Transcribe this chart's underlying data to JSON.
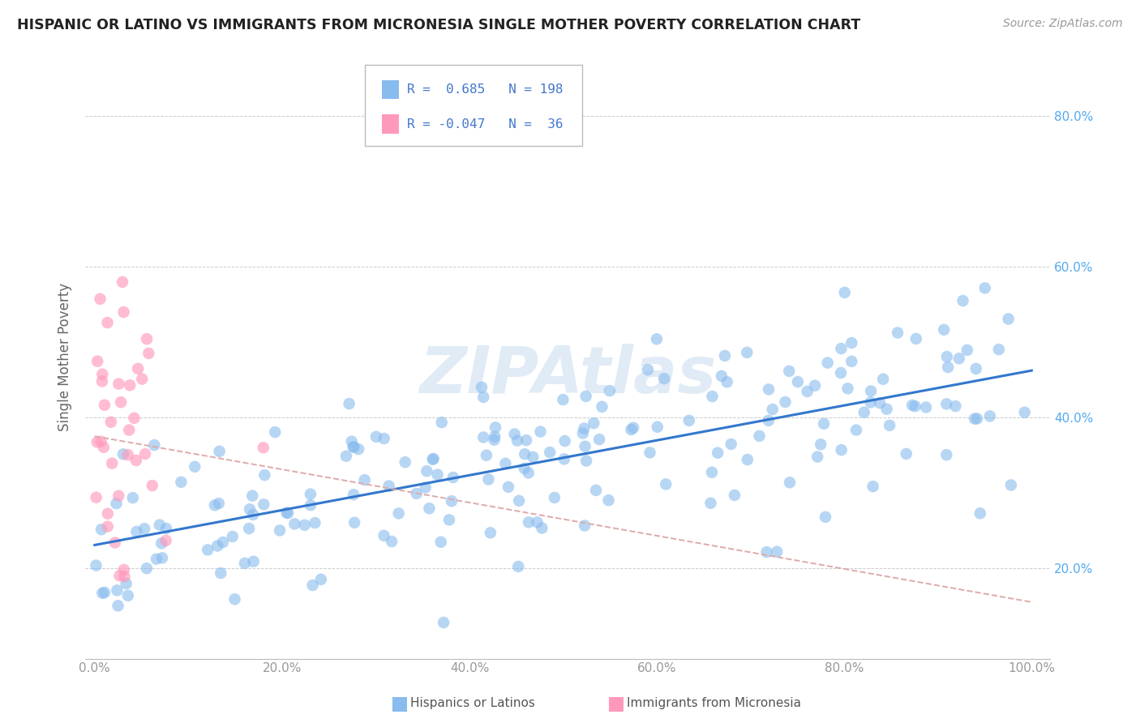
{
  "title": "HISPANIC OR LATINO VS IMMIGRANTS FROM MICRONESIA SINGLE MOTHER POVERTY CORRELATION CHART",
  "source": "Source: ZipAtlas.com",
  "ylabel": "Single Mother Poverty",
  "series1_label": "Hispanics or Latinos",
  "series1_color": "#88BBEE",
  "series1_R": 0.685,
  "series1_N": 198,
  "series2_label": "Immigrants from Micronesia",
  "series2_color": "#FF99BB",
  "series2_R": -0.047,
  "series2_N": 36,
  "background_color": "#ffffff",
  "grid_color": "#cccccc",
  "watermark": "ZIPAtlas",
  "trendline1_color": "#3377CC",
  "trendline2_color": "#DDAAAA",
  "yticks": [
    0.2,
    0.4,
    0.6,
    0.8
  ],
  "xticks": [
    0.0,
    0.2,
    0.4,
    0.6,
    0.8,
    1.0
  ],
  "xlim": [
    -0.01,
    1.02
  ],
  "ylim": [
    0.08,
    0.88
  ]
}
